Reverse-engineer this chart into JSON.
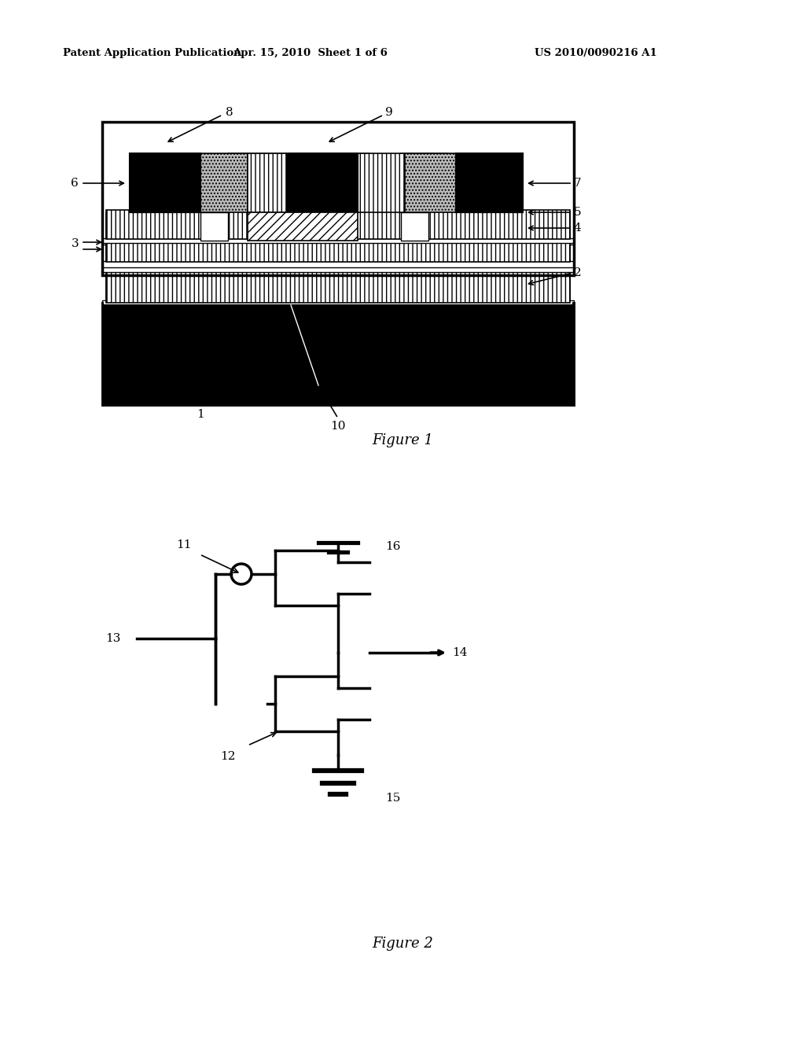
{
  "bg_color": "#ffffff",
  "header_text": "Patent Application Publication",
  "header_date": "Apr. 15, 2010  Sheet 1 of 6",
  "header_patent": "US 2010/0090216 A1",
  "figure1_caption": "Figure 1",
  "figure2_caption": "Figure 2"
}
